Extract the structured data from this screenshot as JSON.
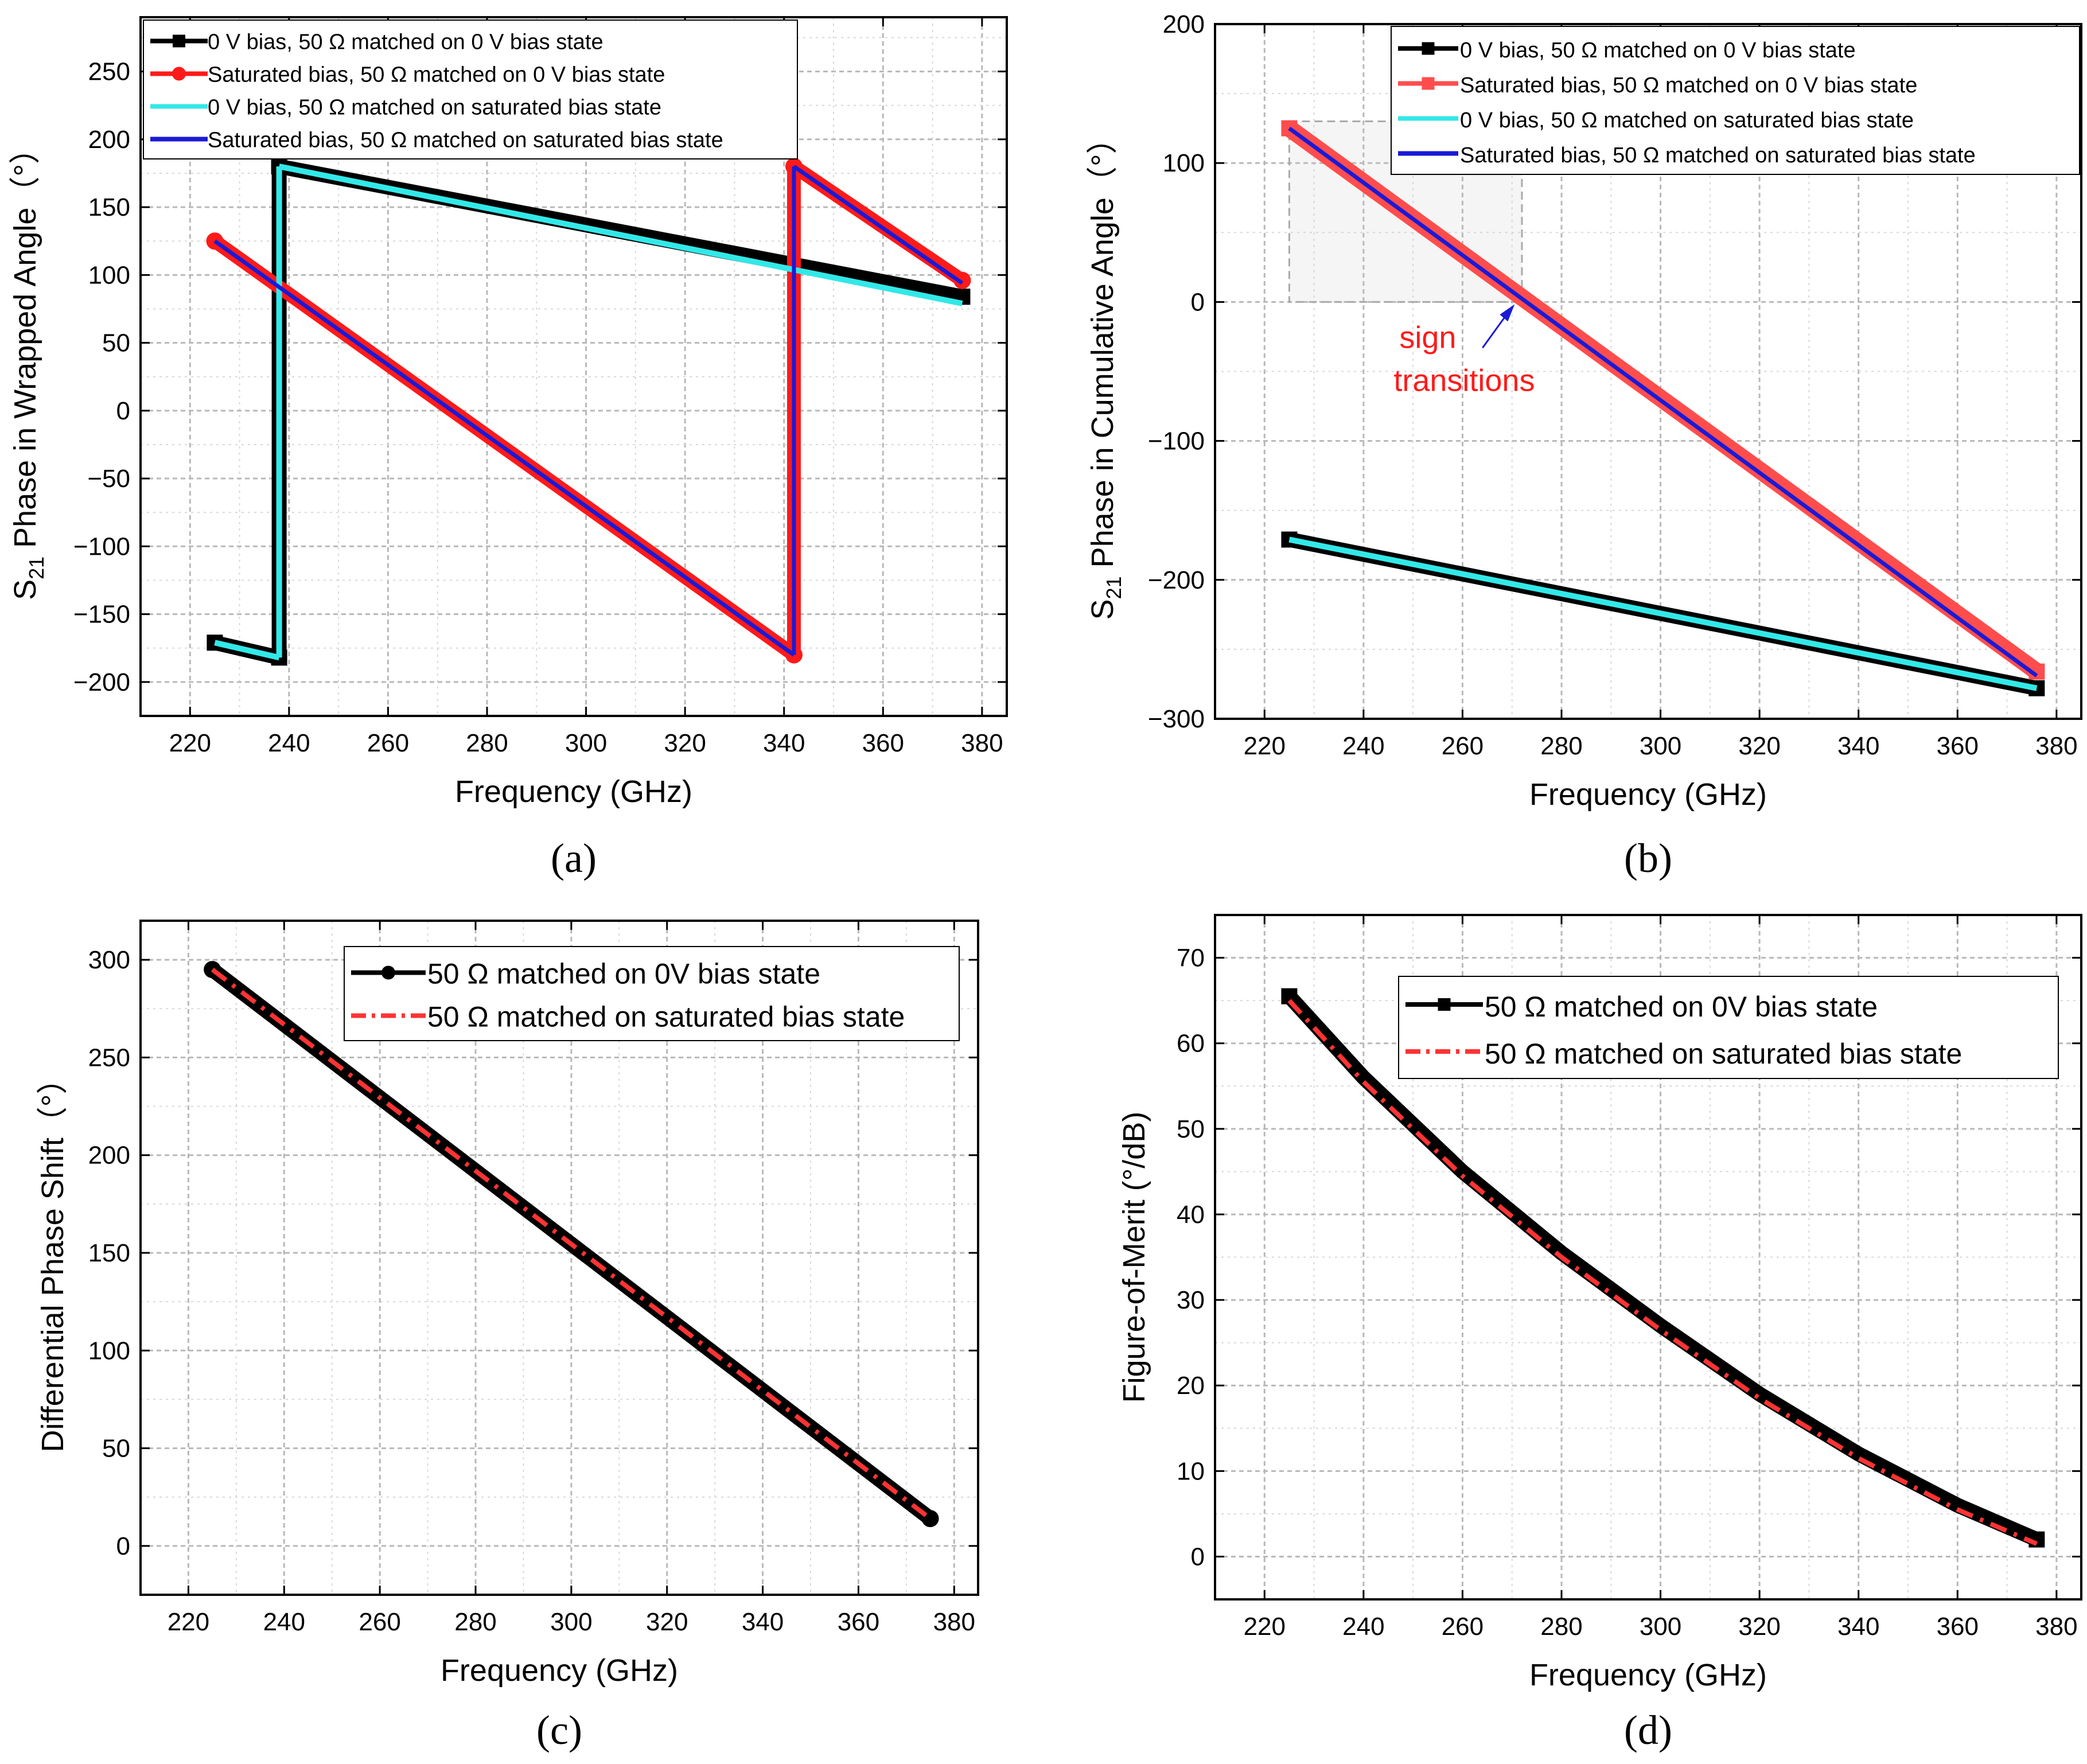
{
  "figure": {
    "panels": [
      "a",
      "b",
      "c",
      "d"
    ]
  },
  "chart_data": [
    {
      "panel": "a",
      "panel_label": "(a)",
      "type": "line",
      "xlabel": "Frequency (GHz)",
      "ylabel_main": "S",
      "ylabel_sub": "21",
      "ylabel_rest": " Phase in Wrapped Angle（°）",
      "xlim": [
        210,
        385
      ],
      "ylim": [
        -225,
        290
      ],
      "xticks": [
        220,
        240,
        260,
        280,
        300,
        320,
        340,
        360,
        380
      ],
      "yticks": [
        -200,
        -150,
        -100,
        -50,
        0,
        50,
        100,
        150,
        200,
        250
      ],
      "xtick_labels": [
        "220",
        "240",
        "260",
        "280",
        "300",
        "320",
        "340",
        "360",
        "380"
      ],
      "ytick_labels": [
        "−200",
        "−150",
        "−100",
        "−50",
        "0",
        "50",
        "100",
        "150",
        "200",
        "250"
      ],
      "legend_position": "top-left",
      "series": [
        {
          "name": "0 V bias, 50 Ω matched on 0 V bias state",
          "color": "#000000",
          "marker": "square",
          "segments": [
            [
              [
                225,
                -171
              ],
              [
                238,
                -182
              ]
            ],
            [
              [
                238,
                -182
              ],
              [
                238,
                180
              ]
            ],
            [
              [
                238,
                180
              ],
              [
                376,
                84
              ]
            ]
          ]
        },
        {
          "name": "Saturated bias, 50 Ω matched on 0 V bias state",
          "color": "#ff1a1a",
          "marker": "circle",
          "segments": [
            [
              [
                225,
                125
              ],
              [
                342,
                -180
              ]
            ],
            [
              [
                342,
                -180
              ],
              [
                342,
                180
              ]
            ],
            [
              [
                342,
                180
              ],
              [
                376,
                96
              ]
            ]
          ]
        },
        {
          "name": "0 V bias, 50 Ω matched on saturated bias state",
          "color": "#33e8e8",
          "marker": "none",
          "segments": [
            [
              [
                225,
                -171
              ],
              [
                238,
                -182
              ]
            ],
            [
              [
                238,
                -182
              ],
              [
                238,
                180
              ]
            ],
            [
              [
                238,
                180
              ],
              [
                376,
                79
              ]
            ]
          ]
        },
        {
          "name": "Saturated bias, 50 Ω matched on saturated bias state",
          "color": "#1a1ad6",
          "marker": "none",
          "segments": [
            [
              [
                225,
                125
              ],
              [
                342,
                -180
              ]
            ],
            [
              [
                342,
                -180
              ],
              [
                342,
                180
              ]
            ],
            [
              [
                342,
                180
              ],
              [
                376,
                94
              ]
            ]
          ]
        }
      ]
    },
    {
      "panel": "b",
      "panel_label": "(b)",
      "type": "line",
      "xlabel": "Frequency (GHz)",
      "ylabel_main": "S",
      "ylabel_sub": "21",
      "ylabel_rest": " Phase in Cumulative Angle（°）",
      "xlim": [
        210,
        385
      ],
      "ylim": [
        -300,
        200
      ],
      "xticks": [
        220,
        240,
        260,
        280,
        300,
        320,
        340,
        360,
        380
      ],
      "yticks": [
        -300,
        -200,
        -100,
        0,
        100,
        200
      ],
      "xtick_labels": [
        "220",
        "240",
        "260",
        "280",
        "300",
        "320",
        "340",
        "360",
        "380"
      ],
      "ytick_labels": [
        "−300",
        "−200",
        "−100",
        "0",
        "100",
        "200"
      ],
      "legend_position": "top-right",
      "annotation": {
        "line1": "sign",
        "line2": "transitions",
        "x": 271,
        "y": 0,
        "color": "#ff1a1a"
      },
      "highlight_box": {
        "x": [
          225,
          272
        ],
        "y": [
          0,
          130
        ]
      },
      "series": [
        {
          "name": "0 V bias, 50 Ω matched on 0 V bias state",
          "color": "#000000",
          "marker": "square",
          "segments": [
            [
              [
                225,
                -171
              ],
              [
                376,
                -278
              ]
            ]
          ]
        },
        {
          "name": "Saturated bias, 50 Ω matched on 0 V bias state",
          "color": "#ff4d4d",
          "marker": "square",
          "segments": [
            [
              [
                225,
                125
              ],
              [
                376,
                -266
              ]
            ]
          ]
        },
        {
          "name": "0 V bias, 50 Ω matched on saturated bias state",
          "color": "#33e8e8",
          "marker": "none",
          "segments": [
            [
              [
                225,
                -171
              ],
              [
                376,
                -278
              ]
            ]
          ]
        },
        {
          "name": "Saturated bias, 50 Ω matched on saturated bias state",
          "color": "#1a1ad6",
          "marker": "none",
          "segments": [
            [
              [
                225,
                125
              ],
              [
                376,
                -269
              ]
            ]
          ]
        }
      ]
    },
    {
      "panel": "c",
      "panel_label": "(c)",
      "type": "line",
      "xlabel": "Frequency (GHz)",
      "ylabel_main": "Differential Phase Shift（°）",
      "ylabel_sub": "",
      "ylabel_rest": "",
      "xlim": [
        210,
        385
      ],
      "ylim": [
        -25,
        320
      ],
      "xticks": [
        220,
        240,
        260,
        280,
        300,
        320,
        340,
        360,
        380
      ],
      "yticks": [
        0,
        50,
        100,
        150,
        200,
        250,
        300
      ],
      "xtick_labels": [
        "220",
        "240",
        "260",
        "280",
        "300",
        "320",
        "340",
        "360",
        "380"
      ],
      "ytick_labels": [
        "0",
        "50",
        "100",
        "150",
        "200",
        "250",
        "300"
      ],
      "legend_position": "top-right",
      "series": [
        {
          "name": "50 Ω matched on 0V bias state",
          "color": "#000000",
          "marker": "circle",
          "segments": [
            [
              [
                225,
                295
              ],
              [
                375,
                14
              ]
            ]
          ]
        },
        {
          "name": "50 Ω matched on saturated bias state",
          "color": "#ff3333",
          "marker": "none",
          "dash": true,
          "segments": [
            [
              [
                225,
                295
              ],
              [
                375,
                14
              ]
            ]
          ]
        }
      ]
    },
    {
      "panel": "d",
      "panel_label": "(d)",
      "type": "line",
      "xlabel": "Frequency (GHz)",
      "ylabel_main": "Figure-of-Merit (°/dB)",
      "ylabel_sub": "",
      "ylabel_rest": "",
      "xlim": [
        210,
        385
      ],
      "ylim": [
        -5,
        75
      ],
      "xticks": [
        220,
        240,
        260,
        280,
        300,
        320,
        340,
        360,
        380
      ],
      "yticks": [
        0,
        10,
        20,
        30,
        40,
        50,
        60,
        70
      ],
      "xtick_labels": [
        "220",
        "240",
        "260",
        "280",
        "300",
        "320",
        "340",
        "360",
        "380"
      ],
      "ytick_labels": [
        "0",
        "10",
        "20",
        "30",
        "40",
        "50",
        "60",
        "70"
      ],
      "legend_position": "top-right",
      "series": [
        {
          "name": "50 Ω matched on 0V bias state",
          "color": "#000000",
          "marker": "square",
          "segments": [
            [
              [
                225,
                65.5
              ],
              [
                240,
                56
              ],
              [
                260,
                45
              ],
              [
                280,
                35.5
              ],
              [
                300,
                27
              ],
              [
                320,
                19
              ],
              [
                340,
                12
              ],
              [
                360,
                6
              ],
              [
                376,
                2
              ]
            ]
          ]
        },
        {
          "name": "50 Ω matched on saturated bias state",
          "color": "#ff3333",
          "marker": "none",
          "dash": true,
          "segments": [
            [
              [
                225,
                65
              ],
              [
                240,
                55.5
              ],
              [
                260,
                44.5
              ],
              [
                280,
                35
              ],
              [
                300,
                26.5
              ],
              [
                320,
                18.5
              ],
              [
                340,
                11.5
              ],
              [
                360,
                5.5
              ],
              [
                376,
                1.5
              ]
            ]
          ]
        }
      ]
    }
  ]
}
